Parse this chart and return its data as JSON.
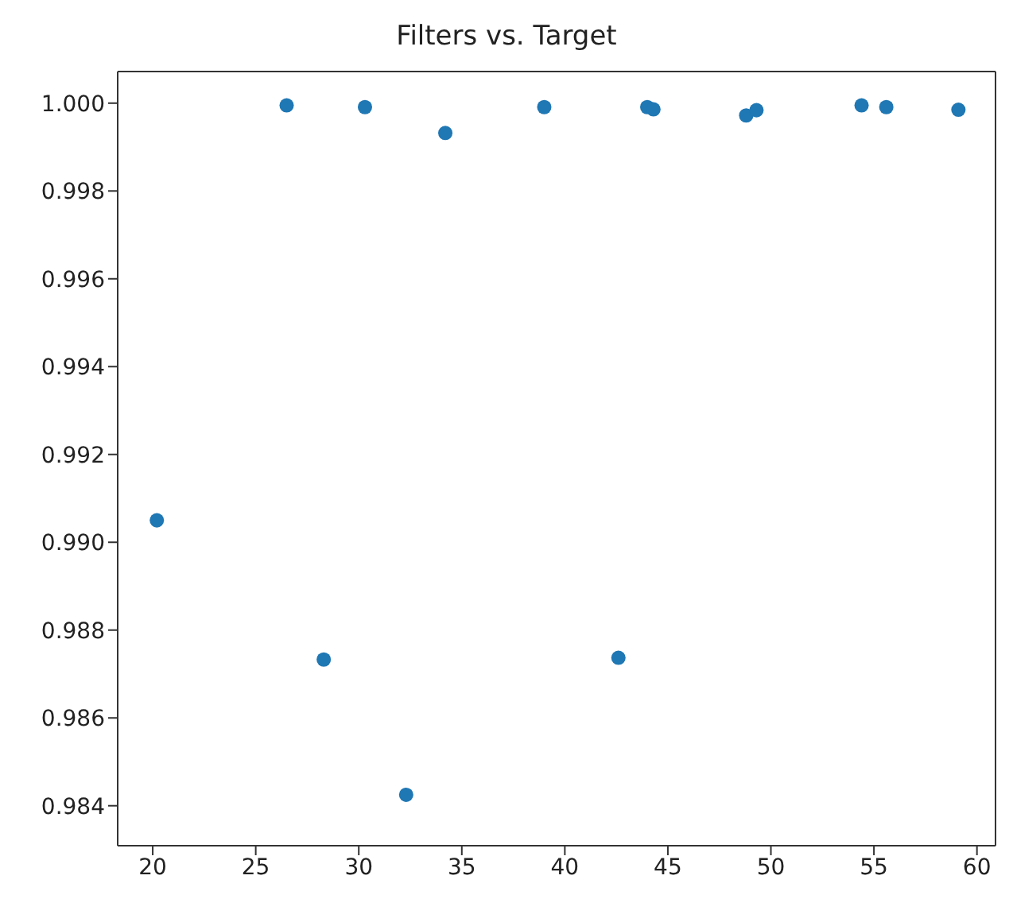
{
  "chart_data": {
    "type": "scatter",
    "title": "Filters vs. Target",
    "x": [
      20.2,
      26.5,
      28.3,
      30.3,
      32.3,
      34.2,
      39.0,
      42.6,
      44.0,
      44.3,
      48.8,
      49.3,
      54.4,
      55.6,
      59.1
    ],
    "series": [
      {
        "color": "#1f77b4",
        "values": [
          0.9905,
          0.99995,
          0.98733,
          0.99991,
          0.98425,
          0.99932,
          0.99991,
          0.98737,
          0.99991,
          0.99986,
          0.99972,
          0.99984,
          0.99995,
          0.99991,
          0.99985
        ]
      }
    ],
    "xlim": [
      18.3,
      60.9
    ],
    "xticks": [
      20,
      25,
      30,
      35,
      40,
      45,
      50,
      55,
      60
    ],
    "ylim": [
      0.98309,
      1.00072
    ],
    "yticks": [
      0.984,
      0.986,
      0.988,
      {
        "value": 0.99,
        "label": "0.990"
      },
      0.992,
      0.994,
      0.996,
      0.998,
      {
        "value": 1.0,
        "label": "1.000"
      }
    ],
    "marker": "circle",
    "grid": false
  }
}
